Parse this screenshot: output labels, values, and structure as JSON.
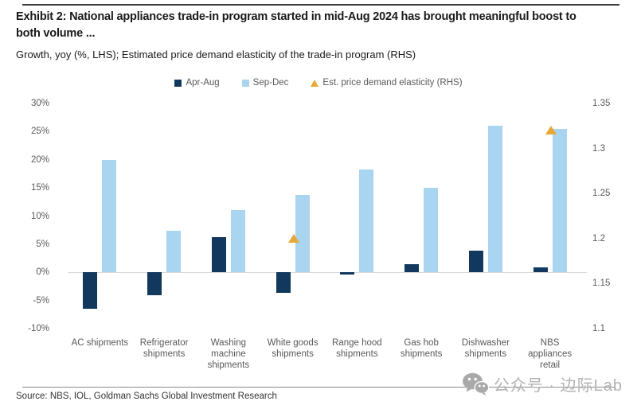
{
  "header": {
    "title_lines": [
      "Exhibit 2: National appliances trade-in program started in mid-Aug 2024 has brought meaningful boost to",
      "both volume ..."
    ],
    "subtitle": "Growth, yoy (%, LHS); Estimated price demand elasticity of the trade-in program (RHS)"
  },
  "legend": {
    "items": [
      {
        "label": "Apr-Aug",
        "marker": "square",
        "color": "#12395d"
      },
      {
        "label": "Sep-Dec",
        "marker": "square",
        "color": "#a9d5f0"
      },
      {
        "label": "Est. price demand elasticity (RHS)",
        "marker": "triangle",
        "color": "#e8a838"
      }
    ]
  },
  "chart_data": {
    "type": "bar",
    "title": "Exhibit 2: National appliances trade-in program started in mid-Aug 2024 has brought meaningful boost to both volume ...",
    "subtitle": "Growth, yoy (%, LHS); Estimated price demand elasticity of the trade-in program (RHS)",
    "categories": [
      "AC shipments",
      "Refrigerator shipments",
      "Washing machine shipments",
      "White goods shipments",
      "Range hood shipments",
      "Gas hob shipments",
      "Dishwasher shipments",
      "NBS appliances retail"
    ],
    "series": [
      {
        "name": "Apr-Aug",
        "type": "bar",
        "axis": "left",
        "color": "#12395d",
        "values": [
          -6.5,
          -4,
          6.2,
          -3.7,
          -0.4,
          1.4,
          3.8,
          0.9
        ]
      },
      {
        "name": "Sep-Dec",
        "type": "bar",
        "axis": "left",
        "color": "#a9d5f0",
        "values": [
          20,
          7.4,
          11,
          13.7,
          18.3,
          15,
          26,
          25.5
        ]
      },
      {
        "name": "Est. price demand elasticity (RHS)",
        "type": "triangle-point",
        "axis": "right",
        "color": "#e8a838",
        "values": [
          null,
          null,
          null,
          1.2,
          null,
          null,
          null,
          1.32
        ]
      }
    ],
    "left_axis": {
      "min": -10,
      "max": 30,
      "ticks": [
        "30%",
        "25%",
        "20%",
        "15%",
        "10%",
        "5%",
        "0%",
        "-5%",
        "-10%"
      ]
    },
    "right_axis": {
      "min": 1.1,
      "max": 1.35,
      "ticks": [
        "1.35",
        "1.3",
        "1.25",
        "1.2",
        "1.15",
        "1.1"
      ]
    },
    "grid": false,
    "legend_position": "top"
  },
  "footer": {
    "source": "Source: NBS, IOL, Goldman Sachs Global Investment Research",
    "watermark": {
      "icon": "wechat-icon",
      "text": "公众号 · 边际Lab"
    }
  },
  "colors": {
    "title_text": "#1a1a1a",
    "axis_text": "#595959",
    "zero_line": "#d8d8d8",
    "top_rule": "#3d3d3d",
    "bottom_rule": "#8c8c8c",
    "watermark": "#b2b2b2"
  }
}
